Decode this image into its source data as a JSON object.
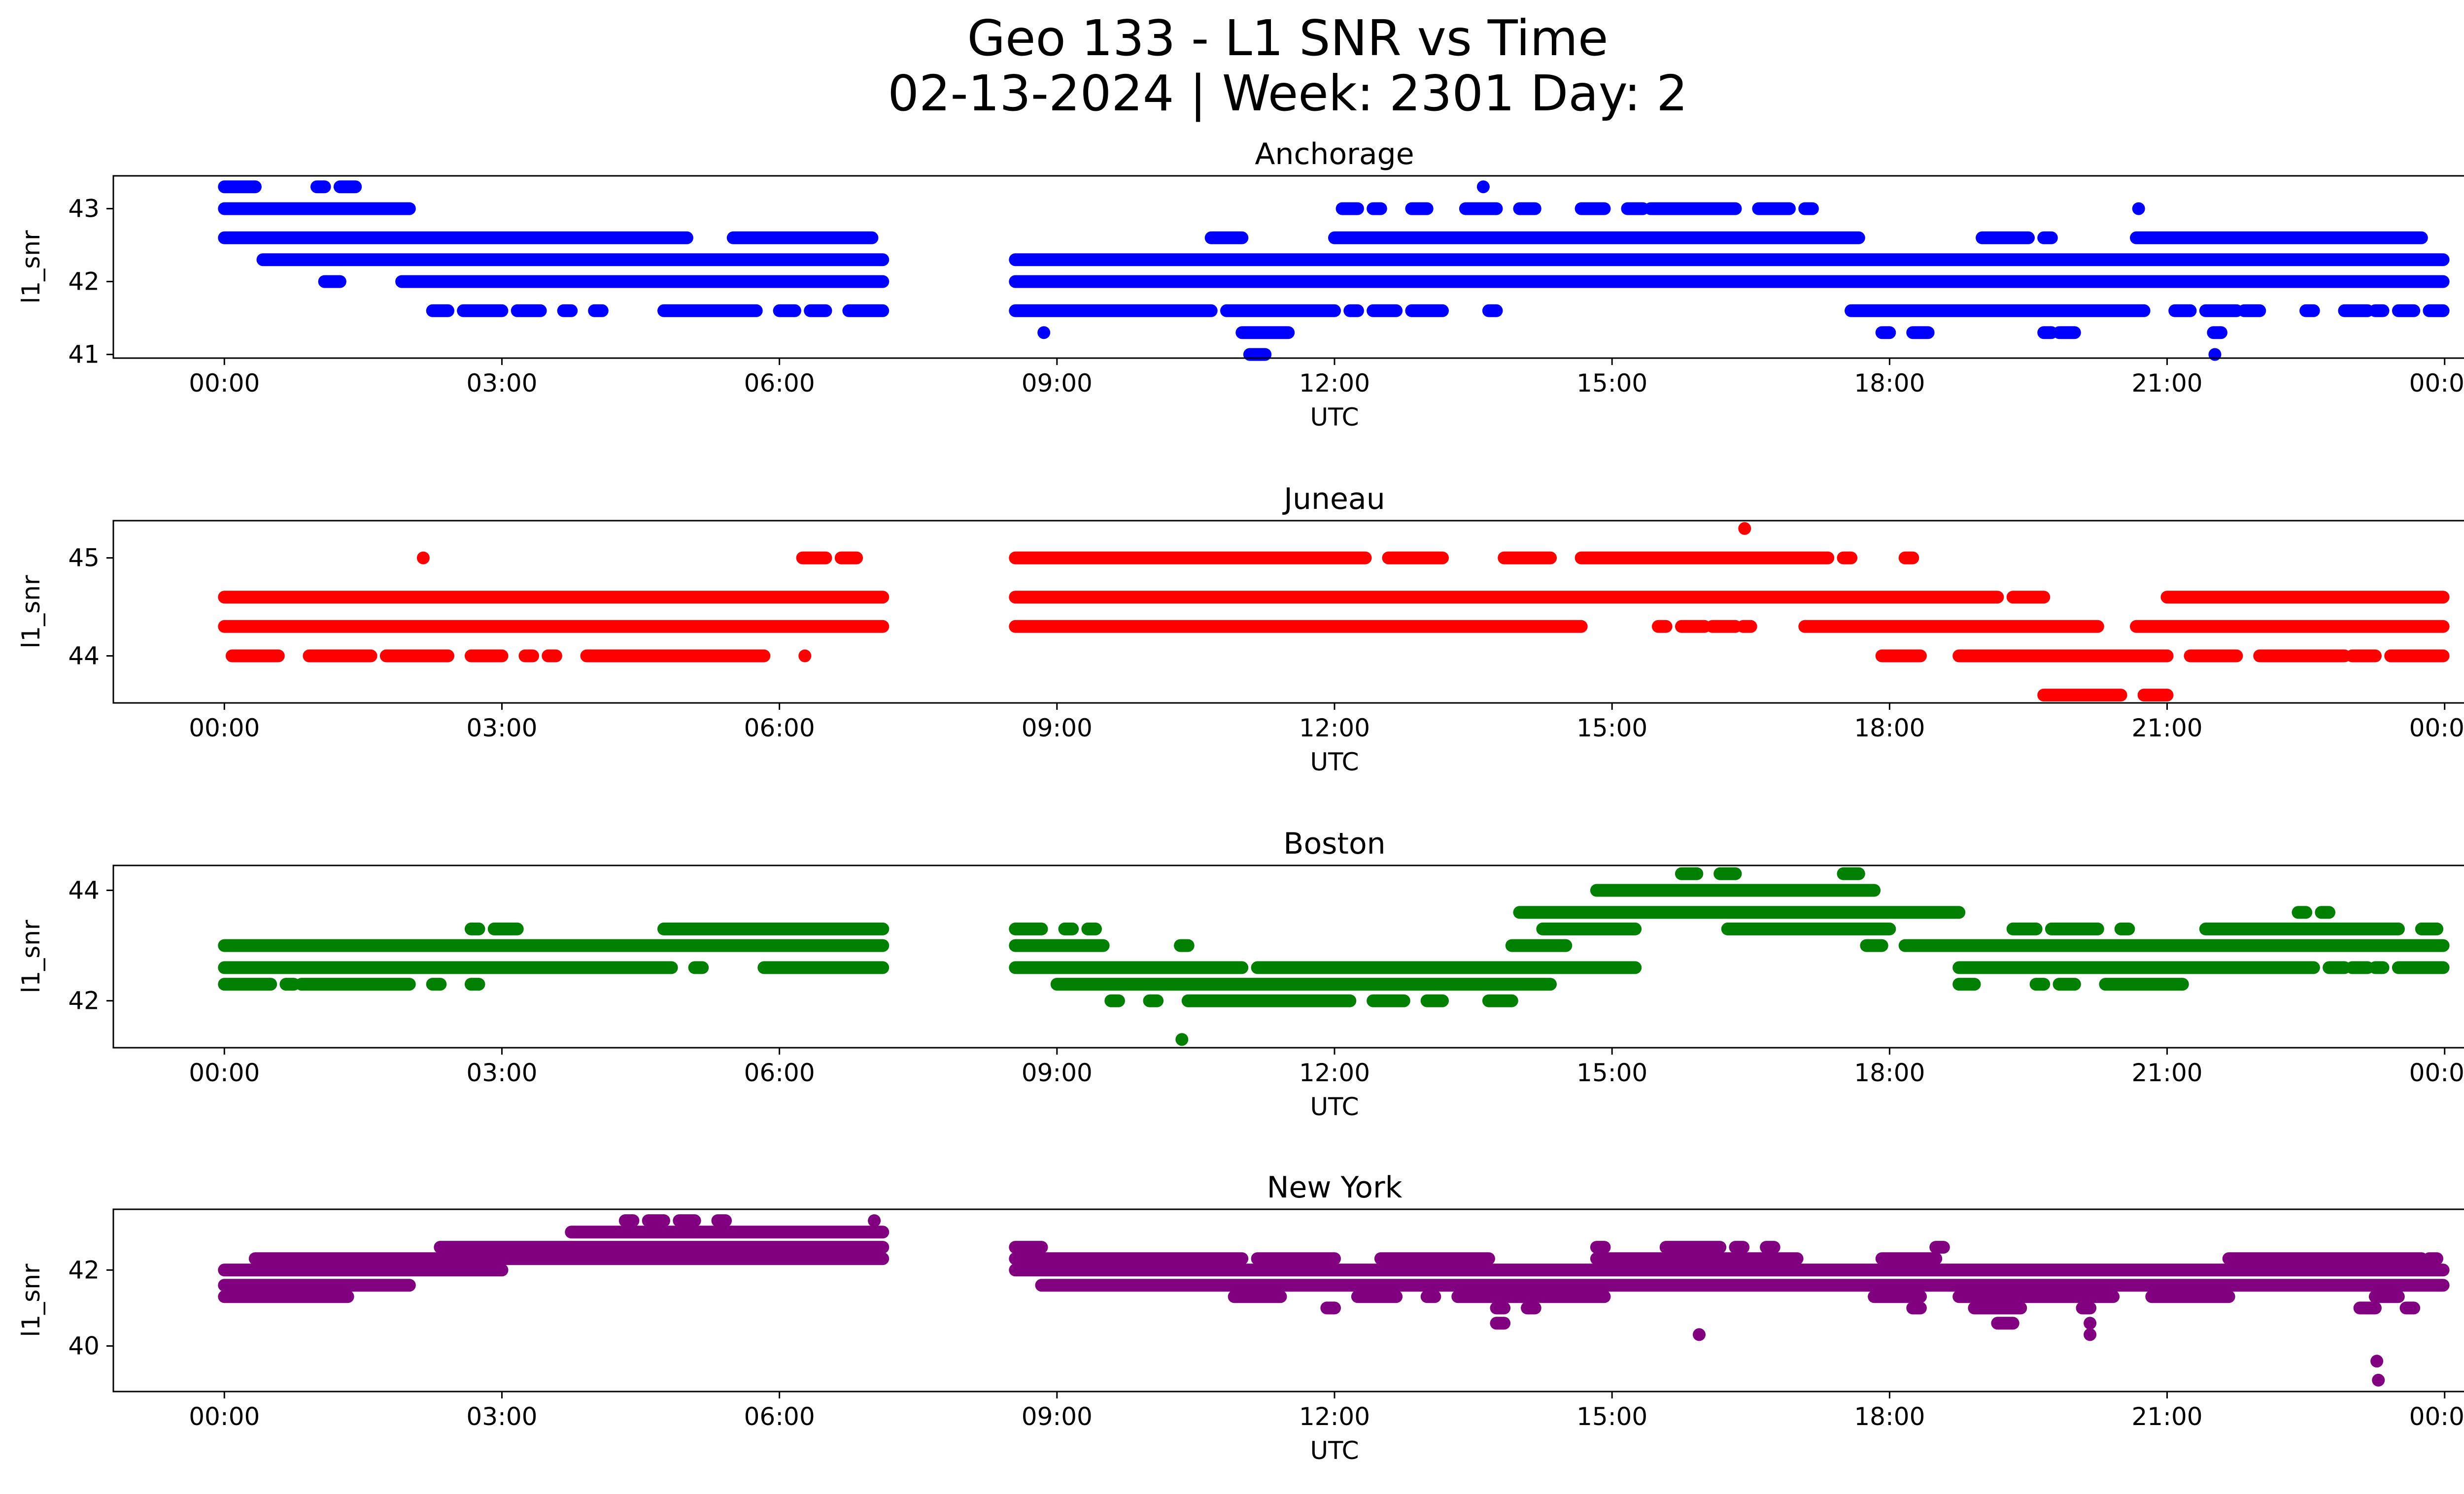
{
  "figure": {
    "title_line1": "Geo 133 - L1 SNR vs Time",
    "title_line2": "02-13-2024 | Week: 2301 Day: 2"
  },
  "chart_data": [
    {
      "type": "scatter",
      "title": "Anchorage",
      "xlabel": "UTC",
      "ylabel": "l1_snr",
      "color": "#0000ff",
      "xlim": [
        "00:00",
        "24:00"
      ],
      "ylim": [
        40.95,
        43.45
      ],
      "yticks": [
        41,
        42,
        43
      ],
      "xticks": [
        "00:00",
        "03:00",
        "06:00",
        "09:00",
        "12:00",
        "15:00",
        "18:00",
        "21:00",
        "00:00"
      ],
      "data_gap": [
        "07:07",
        "08:33"
      ],
      "bands": [
        {
          "y": 43.3,
          "segments": [
            [
              "00:00",
              "00:20"
            ],
            [
              "01:00",
              "01:05"
            ],
            [
              "01:15",
              "01:25"
            ],
            [
              "13:35",
              "13:38"
            ]
          ]
        },
        {
          "y": 43.0,
          "segments": [
            [
              "00:00",
              "02:00"
            ],
            [
              "12:05",
              "12:15"
            ],
            [
              "12:25",
              "12:30"
            ],
            [
              "12:50",
              "13:00"
            ],
            [
              "13:25",
              "13:45"
            ],
            [
              "14:00",
              "14:10"
            ],
            [
              "14:40",
              "14:55"
            ],
            [
              "15:10",
              "15:20"
            ],
            [
              "15:25",
              "16:20"
            ],
            [
              "16:35",
              "16:55"
            ],
            [
              "17:05",
              "17:10"
            ],
            [
              "20:40",
              "20:43"
            ]
          ]
        },
        {
          "y": 42.6,
          "segments": [
            [
              "00:00",
              "05:00"
            ],
            [
              "05:30",
              "07:00"
            ],
            [
              "10:40",
              "11:00"
            ],
            [
              "12:00",
              "17:40"
            ],
            [
              "19:00",
              "19:30"
            ],
            [
              "19:40",
              "19:45"
            ],
            [
              "20:40",
              "23:45"
            ]
          ]
        },
        {
          "y": 42.3,
          "segments": [
            [
              "00:25",
              "07:07"
            ],
            [
              "08:33",
              "23:59"
            ]
          ]
        },
        {
          "y": 42.0,
          "segments": [
            [
              "01:05",
              "01:15"
            ],
            [
              "01:55",
              "07:07"
            ],
            [
              "08:33",
              "23:59"
            ]
          ]
        },
        {
          "y": 41.6,
          "segments": [
            [
              "02:15",
              "02:25"
            ],
            [
              "02:35",
              "03:00"
            ],
            [
              "03:10",
              "03:25"
            ],
            [
              "03:40",
              "03:45"
            ],
            [
              "04:00",
              "04:05"
            ],
            [
              "04:45",
              "05:45"
            ],
            [
              "06:00",
              "06:10"
            ],
            [
              "06:20",
              "06:30"
            ],
            [
              "06:45",
              "07:07"
            ],
            [
              "08:33",
              "10:40"
            ],
            [
              "10:50",
              "12:00"
            ],
            [
              "12:10",
              "12:15"
            ],
            [
              "12:25",
              "12:40"
            ],
            [
              "12:50",
              "13:10"
            ],
            [
              "13:40",
              "13:45"
            ],
            [
              "17:35",
              "20:45"
            ],
            [
              "21:05",
              "21:15"
            ],
            [
              "21:25",
              "21:45"
            ],
            [
              "21:50",
              "22:00"
            ],
            [
              "22:30",
              "22:35"
            ],
            [
              "22:55",
              "23:10"
            ],
            [
              "23:15",
              "23:20"
            ],
            [
              "23:30",
              "23:40"
            ],
            [
              "23:50",
              "23:59"
            ]
          ]
        },
        {
          "y": 41.3,
          "segments": [
            [
              "08:50",
              "08:53"
            ],
            [
              "11:00",
              "11:30"
            ],
            [
              "17:55",
              "18:00"
            ],
            [
              "18:15",
              "18:25"
            ],
            [
              "19:40",
              "19:45"
            ],
            [
              "19:50",
              "20:00"
            ],
            [
              "21:30",
              "21:35"
            ]
          ]
        },
        {
          "y": 41.0,
          "segments": [
            [
              "11:05",
              "11:15"
            ],
            [
              "21:30",
              "21:32"
            ]
          ]
        }
      ]
    },
    {
      "type": "scatter",
      "title": "Juneau",
      "xlabel": "UTC",
      "ylabel": "l1_snr",
      "color": "#ff0000",
      "xlim": [
        "00:00",
        "24:00"
      ],
      "ylim": [
        43.52,
        45.38
      ],
      "yticks": [
        44,
        45
      ],
      "xticks": [
        "00:00",
        "03:00",
        "06:00",
        "09:00",
        "12:00",
        "15:00",
        "18:00",
        "21:00",
        "00:00"
      ],
      "data_gap": [
        "07:07",
        "08:33"
      ],
      "bands": [
        {
          "y": 45.3,
          "segments": [
            [
              "16:25",
              "16:27"
            ]
          ]
        },
        {
          "y": 45.0,
          "segments": [
            [
              "02:08",
              "02:10"
            ],
            [
              "06:15",
              "06:30"
            ],
            [
              "06:40",
              "06:50"
            ],
            [
              "08:33",
              "12:20"
            ],
            [
              "12:35",
              "13:10"
            ],
            [
              "13:50",
              "14:20"
            ],
            [
              "14:40",
              "17:20"
            ],
            [
              "17:30",
              "17:35"
            ],
            [
              "18:10",
              "18:15"
            ]
          ]
        },
        {
          "y": 44.6,
          "segments": [
            [
              "00:00",
              "07:07"
            ],
            [
              "08:33",
              "19:10"
            ],
            [
              "19:20",
              "19:40"
            ],
            [
              "21:00",
              "23:59"
            ]
          ]
        },
        {
          "y": 44.3,
          "segments": [
            [
              "00:00",
              "07:07"
            ],
            [
              "08:33",
              "14:40"
            ],
            [
              "15:30",
              "15:35"
            ],
            [
              "15:45",
              "16:00"
            ],
            [
              "16:05",
              "16:20"
            ],
            [
              "16:25",
              "16:30"
            ],
            [
              "17:05",
              "20:15"
            ],
            [
              "20:40",
              "23:59"
            ]
          ]
        },
        {
          "y": 44.0,
          "segments": [
            [
              "00:05",
              "00:35"
            ],
            [
              "00:55",
              "01:35"
            ],
            [
              "01:45",
              "02:25"
            ],
            [
              "02:40",
              "03:00"
            ],
            [
              "03:15",
              "03:20"
            ],
            [
              "03:30",
              "03:35"
            ],
            [
              "03:55",
              "05:50"
            ],
            [
              "06:15",
              "06:18"
            ],
            [
              "17:55",
              "18:20"
            ],
            [
              "18:45",
              "21:00"
            ],
            [
              "21:15",
              "21:45"
            ],
            [
              "22:00",
              "22:55"
            ],
            [
              "23:00",
              "23:15"
            ],
            [
              "23:25",
              "23:59"
            ]
          ]
        },
        {
          "y": 43.6,
          "segments": [
            [
              "19:40",
              "20:30"
            ],
            [
              "20:45",
              "21:00"
            ]
          ]
        }
      ]
    },
    {
      "type": "scatter",
      "title": "Boston",
      "xlabel": "UTC",
      "ylabel": "l1_snr",
      "color": "#008000",
      "xlim": [
        "00:00",
        "24:00"
      ],
      "ylim": [
        41.15,
        44.45
      ],
      "yticks": [
        42,
        44
      ],
      "xticks": [
        "00:00",
        "03:00",
        "06:00",
        "09:00",
        "12:00",
        "15:00",
        "18:00",
        "21:00",
        "00:00"
      ],
      "data_gap": [
        "07:07",
        "08:33"
      ],
      "bands": [
        {
          "y": 44.3,
          "segments": [
            [
              "15:45",
              "15:55"
            ],
            [
              "16:10",
              "16:20"
            ],
            [
              "17:30",
              "17:40"
            ]
          ]
        },
        {
          "y": 44.0,
          "segments": [
            [
              "14:50",
              "17:50"
            ]
          ]
        },
        {
          "y": 43.6,
          "segments": [
            [
              "14:00",
              "18:45"
            ],
            [
              "22:25",
              "22:30"
            ],
            [
              "22:40",
              "22:45"
            ]
          ]
        },
        {
          "y": 43.3,
          "segments": [
            [
              "02:40",
              "02:45"
            ],
            [
              "02:55",
              "03:10"
            ],
            [
              "04:45",
              "07:07"
            ],
            [
              "08:33",
              "08:50"
            ],
            [
              "09:05",
              "09:10"
            ],
            [
              "09:20",
              "09:25"
            ],
            [
              "14:15",
              "15:15"
            ],
            [
              "16:15",
              "18:00"
            ],
            [
              "19:20",
              "19:35"
            ],
            [
              "19:45",
              "20:15"
            ],
            [
              "20:30",
              "20:35"
            ],
            [
              "21:25",
              "23:30"
            ],
            [
              "23:45",
              "23:55"
            ]
          ]
        },
        {
          "y": 43.0,
          "segments": [
            [
              "00:00",
              "07:07"
            ],
            [
              "08:33",
              "09:30"
            ],
            [
              "10:20",
              "10:25"
            ],
            [
              "13:55",
              "14:30"
            ],
            [
              "17:45",
              "17:55"
            ],
            [
              "18:10",
              "23:59"
            ]
          ]
        },
        {
          "y": 42.6,
          "segments": [
            [
              "00:00",
              "04:50"
            ],
            [
              "05:05",
              "05:10"
            ],
            [
              "05:50",
              "07:07"
            ],
            [
              "08:33",
              "11:00"
            ],
            [
              "11:10",
              "15:15"
            ],
            [
              "18:45",
              "22:35"
            ],
            [
              "22:45",
              "22:55"
            ],
            [
              "23:00",
              "23:10"
            ],
            [
              "23:15",
              "23:20"
            ],
            [
              "23:30",
              "23:59"
            ]
          ]
        },
        {
          "y": 42.3,
          "segments": [
            [
              "00:00",
              "00:30"
            ],
            [
              "00:40",
              "00:45"
            ],
            [
              "00:50",
              "02:00"
            ],
            [
              "02:15",
              "02:20"
            ],
            [
              "02:40",
              "02:45"
            ],
            [
              "09:00",
              "14:20"
            ],
            [
              "18:45",
              "18:55"
            ],
            [
              "19:35",
              "19:40"
            ],
            [
              "19:50",
              "20:00"
            ],
            [
              "20:20",
              "21:10"
            ]
          ]
        },
        {
          "y": 42.0,
          "segments": [
            [
              "09:35",
              "09:40"
            ],
            [
              "10:00",
              "10:05"
            ],
            [
              "10:25",
              "12:10"
            ],
            [
              "12:25",
              "12:45"
            ],
            [
              "13:00",
              "13:10"
            ],
            [
              "13:40",
              "13:55"
            ]
          ]
        },
        {
          "y": 41.3,
          "segments": [
            [
              "10:20",
              "10:22"
            ]
          ]
        }
      ]
    },
    {
      "type": "scatter",
      "title": "New York",
      "xlabel": "UTC",
      "ylabel": "l1_snr",
      "color": "#800080",
      "xlim": [
        "00:00",
        "24:00"
      ],
      "ylim": [
        38.8,
        43.6
      ],
      "yticks": [
        40,
        42
      ],
      "xticks": [
        "00:00",
        "03:00",
        "06:00",
        "09:00",
        "12:00",
        "15:00",
        "18:00",
        "21:00",
        "00:00"
      ],
      "data_gap": [
        "07:07",
        "08:33"
      ],
      "bands": [
        {
          "y": 43.3,
          "segments": [
            [
              "04:20",
              "04:25"
            ],
            [
              "04:35",
              "04:45"
            ],
            [
              "04:55",
              "05:05"
            ],
            [
              "05:20",
              "05:25"
            ],
            [
              "07:00",
              "07:03"
            ]
          ]
        },
        {
          "y": 43.0,
          "segments": [
            [
              "03:45",
              "07:07"
            ]
          ]
        },
        {
          "y": 42.6,
          "segments": [
            [
              "02:20",
              "07:07"
            ],
            [
              "08:33",
              "08:50"
            ],
            [
              "14:50",
              "14:55"
            ],
            [
              "15:35",
              "16:10"
            ],
            [
              "16:20",
              "16:25"
            ],
            [
              "16:40",
              "16:45"
            ],
            [
              "18:30",
              "18:35"
            ]
          ]
        },
        {
          "y": 42.3,
          "segments": [
            [
              "00:20",
              "07:07"
            ],
            [
              "08:33",
              "11:00"
            ],
            [
              "11:10",
              "12:00"
            ],
            [
              "12:30",
              "13:40"
            ],
            [
              "14:50",
              "17:00"
            ],
            [
              "17:55",
              "18:30"
            ],
            [
              "21:40",
              "23:45"
            ],
            [
              "23:50",
              "23:55"
            ]
          ]
        },
        {
          "y": 42.0,
          "segments": [
            [
              "00:00",
              "03:00"
            ],
            [
              "08:33",
              "23:59"
            ]
          ]
        },
        {
          "y": 41.6,
          "segments": [
            [
              "00:00",
              "02:00"
            ],
            [
              "08:50",
              "23:59"
            ]
          ]
        },
        {
          "y": 41.3,
          "segments": [
            [
              "00:00",
              "01:20"
            ],
            [
              "10:55",
              "11:25"
            ],
            [
              "12:15",
              "12:40"
            ],
            [
              "13:00",
              "13:05"
            ],
            [
              "13:20",
              "14:55"
            ],
            [
              "17:50",
              "18:20"
            ],
            [
              "18:45",
              "20:25"
            ],
            [
              "20:50",
              "21:40"
            ],
            [
              "23:15",
              "23:30"
            ]
          ]
        },
        {
          "y": 41.0,
          "segments": [
            [
              "11:55",
              "12:00"
            ],
            [
              "13:45",
              "13:50"
            ],
            [
              "14:05",
              "14:10"
            ],
            [
              "18:15",
              "18:20"
            ],
            [
              "18:55",
              "19:25"
            ],
            [
              "20:05",
              "20:10"
            ],
            [
              "23:05",
              "23:15"
            ],
            [
              "23:35",
              "23:40"
            ]
          ]
        },
        {
          "y": 40.6,
          "segments": [
            [
              "13:45",
              "13:50"
            ],
            [
              "19:10",
              "19:20"
            ],
            [
              "20:08",
              "20:12"
            ]
          ]
        },
        {
          "y": 40.3,
          "segments": [
            [
              "15:55",
              "15:58"
            ],
            [
              "20:08",
              "20:12"
            ]
          ]
        },
        {
          "y": 39.6,
          "segments": [
            [
              "23:15",
              "23:17"
            ]
          ]
        },
        {
          "y": 39.1,
          "segments": [
            [
              "23:16",
              "23:18"
            ]
          ]
        }
      ]
    }
  ]
}
